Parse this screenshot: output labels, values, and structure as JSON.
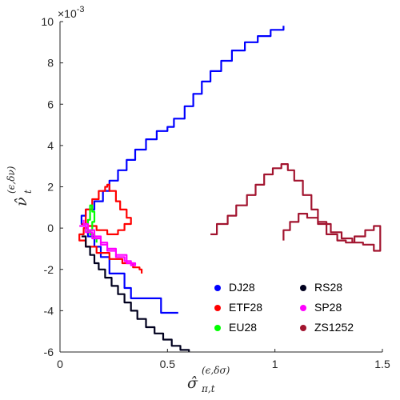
{
  "chart_data": {
    "type": "line",
    "xlabel": "σ̂",
    "xlabel_sub": "π,t",
    "xlabel_sup": "(ϵ,δσ)",
    "ylabel": "ν̂",
    "ylabel_sub": "t",
    "ylabel_sup": "(ϵ,δν)",
    "y_exponent": "×10-3",
    "xlim": [
      0,
      1.5
    ],
    "ylim": [
      -6,
      10
    ],
    "xticks": [
      0,
      0.5,
      1,
      1.5
    ],
    "xtick_labels": [
      "0",
      "0.5",
      "1",
      "1.5"
    ],
    "yticks": [
      -6,
      -4,
      -2,
      0,
      2,
      4,
      6,
      8,
      10
    ],
    "ytick_labels": [
      "-6",
      "-4",
      "-2",
      "0",
      "2",
      "4",
      "6",
      "8",
      "10"
    ],
    "grid": false,
    "legend_position": "lower-right",
    "series": [
      {
        "name": "DJ28",
        "color": "#0000ff",
        "x": [
          0.55,
          0.47,
          0.33,
          0.3,
          0.23,
          0.19,
          0.16,
          0.13,
          0.1,
          0.12,
          0.16,
          0.2,
          0.23,
          0.27,
          0.31,
          0.35,
          0.4,
          0.45,
          0.5,
          0.53,
          0.58,
          0.62,
          0.66,
          0.7,
          0.75,
          0.8,
          0.86,
          0.92,
          0.98,
          1.04
        ],
        "y": [
          -4.1,
          -3.4,
          -2.9,
          -2.2,
          -1.4,
          -0.9,
          -0.4,
          0.2,
          0.6,
          0.9,
          1.3,
          1.8,
          2.3,
          2.8,
          3.3,
          3.8,
          4.3,
          4.7,
          4.9,
          5.3,
          5.9,
          6.5,
          7.1,
          7.6,
          8.1,
          8.6,
          9.0,
          9.3,
          9.6,
          9.8
        ]
      },
      {
        "name": "ETF28",
        "color": "#ff0000",
        "x": [
          0.1,
          0.12,
          0.15,
          0.18,
          0.21,
          0.22,
          0.23,
          0.26,
          0.28,
          0.31,
          0.33,
          0.3,
          0.27,
          0.22,
          0.17,
          0.13,
          0.11,
          0.09,
          0.12,
          0.17,
          0.23,
          0.29,
          0.34,
          0.37,
          0.38
        ],
        "y": [
          0.2,
          0.9,
          1.4,
          1.8,
          2.0,
          2.1,
          1.8,
          1.3,
          0.9,
          0.5,
          0.2,
          -0.1,
          -0.3,
          -0.1,
          0.1,
          0.0,
          -0.3,
          -0.6,
          -0.9,
          -1.2,
          -1.5,
          -1.7,
          -1.9,
          -2.0,
          -2.2
        ]
      },
      {
        "name": "EU28",
        "color": "#00ff00",
        "x": [
          0.12,
          0.13,
          0.14,
          0.14,
          0.15,
          0.16,
          0.15,
          0.14,
          0.16,
          0.17
        ],
        "y": [
          -0.2,
          0.4,
          0.7,
          1.1,
          0.8,
          0.3,
          -0.1,
          -0.3,
          -0.5,
          -0.7
        ]
      },
      {
        "name": "RS28",
        "color": "#00001e",
        "x": [
          0.1,
          0.12,
          0.14,
          0.16,
          0.18,
          0.21,
          0.24,
          0.27,
          0.3,
          0.33,
          0.36,
          0.4,
          0.44,
          0.48,
          0.52,
          0.56,
          0.6
        ],
        "y": [
          -0.4,
          -0.9,
          -1.3,
          -1.7,
          -2.0,
          -2.4,
          -2.8,
          -3.2,
          -3.6,
          -4.0,
          -4.4,
          -4.8,
          -5.1,
          -5.4,
          -5.7,
          -5.9,
          -6.0
        ]
      },
      {
        "name": "SP28",
        "color": "#ff00ff",
        "x": [
          0.09,
          0.12,
          0.15,
          0.19,
          0.22,
          0.26,
          0.3,
          0.33,
          0.35,
          0.31,
          0.26,
          0.22,
          0.19,
          0.16,
          0.13,
          0.11
        ],
        "y": [
          0.1,
          -0.2,
          -0.5,
          -0.8,
          -1.1,
          -1.4,
          -1.6,
          -1.8,
          -1.7,
          -1.3,
          -1.0,
          -0.7,
          -0.4,
          -0.1,
          0.2,
          0.4
        ]
      },
      {
        "name": "ZS1252",
        "color": "#a2142f",
        "x": [
          0.7,
          0.73,
          0.78,
          0.82,
          0.87,
          0.91,
          0.95,
          0.99,
          1.03,
          1.06,
          1.09,
          1.13,
          1.17,
          1.2,
          1.24,
          1.29,
          1.33,
          1.37,
          1.42,
          1.46,
          1.49,
          1.46,
          1.41,
          1.36,
          1.31,
          1.26,
          1.2,
          1.15,
          1.11,
          1.07,
          1.04
        ],
        "y": [
          -0.3,
          0.2,
          0.6,
          1.1,
          1.6,
          2.1,
          2.6,
          2.9,
          3.1,
          2.8,
          2.3,
          1.6,
          0.9,
          0.3,
          -0.3,
          -0.6,
          -0.7,
          -0.4,
          -0.1,
          0.1,
          -1.1,
          -0.8,
          -0.7,
          -0.5,
          -0.2,
          0.2,
          0.5,
          0.7,
          0.3,
          -0.1,
          -0.6
        ]
      }
    ]
  }
}
